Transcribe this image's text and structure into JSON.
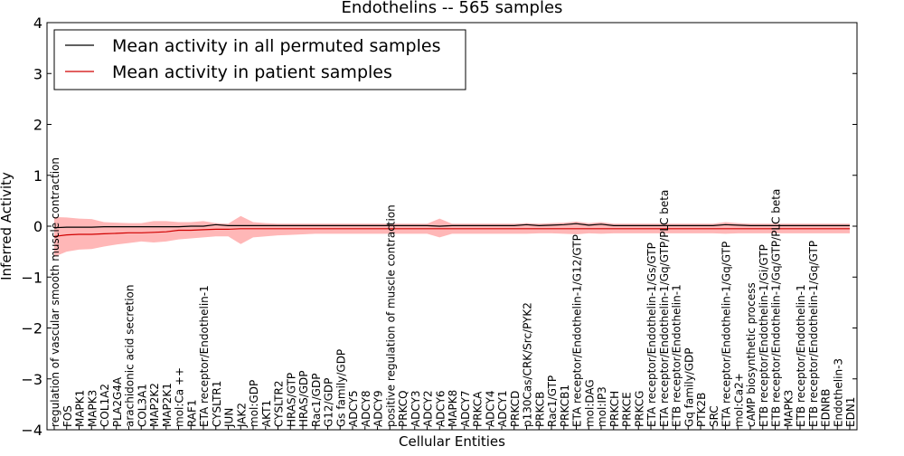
{
  "chart_data": {
    "type": "line",
    "title": "Endothelins -- 565 samples",
    "xlabel": "Cellular Entities",
    "ylabel": "Inferred Activity",
    "ylim": [
      -4,
      4
    ],
    "yticks": [
      "−4",
      "−3",
      "−2",
      "−1",
      "0",
      "1",
      "2",
      "3",
      "4"
    ],
    "grid": false,
    "legend_position": "upper-left",
    "categories": [
      "regulation of vascular smooth muscle contraction",
      "FOS",
      "MAPK1",
      "MAPK3",
      "COL1A2",
      "PLA2G4A",
      "arachidonic acid secretion",
      "COL3A1",
      "MAP2K2",
      "MAP2K1",
      "mol:Ca ++",
      "RAF1",
      "ETA receptor/Endothelin-1",
      "CYSLTR1",
      "JUN",
      "JAK2",
      "mol:GDP",
      "AKT1",
      "CYSLTR2",
      "HRAS/GTP",
      "HRAS/GDP",
      "Rac1/GDP",
      "G12/GDP",
      "Gs family/GDP",
      "ADCY5",
      "ADCY8",
      "ADCY9",
      "positive regulation of muscle contraction",
      "PRKCQ",
      "ADCY3",
      "ADCY2",
      "ADCY6",
      "MAPK8",
      "ADCY7",
      "PRKCA",
      "ADCY4",
      "ADCY1",
      "PRKCD",
      "p130Cas/CRK/Src/PYK2",
      "PRKCB",
      "Rac1/GTP",
      "PRKCB1",
      "ETA receptor/Endothelin-1/G12/GTP",
      "mol:DAG",
      "mol:IP3",
      "PRKCH",
      "PRKCE",
      "PRKCG",
      "ETA receptor/Endothelin-1/Gs/GTP",
      "ETA receptor/Endothelin-1/Gq/GTP/PLC beta",
      "ETB receptor/Endothelin-1",
      "Gq family/GDP",
      "PTK2B",
      "SRC",
      "ETA receptor/Endothelin-1/Gq/GTP",
      "mol:Ca2+",
      "cAMP biosynthetic process",
      "ETB receptor/Endothelin-1/Gi/GTP",
      "ETB receptor/Endothelin-1/Gq/GTP/PLC beta",
      "MAPK3",
      "ETB receptor/Endothelin-1",
      "ETB receptor/Endothelin-1/Gq/GTP",
      "EDNRB",
      "Endothelin-3",
      "EDN1"
    ],
    "series": [
      {
        "name": "Mean activity in all permuted samples",
        "color": "#000000",
        "values": [
          -0.03,
          -0.02,
          -0.02,
          -0.02,
          -0.01,
          -0.01,
          -0.01,
          -0.01,
          -0.01,
          -0.01,
          -0.01,
          0.0,
          0.0,
          0.03,
          0.01,
          0.01,
          0.01,
          0.01,
          0.01,
          0.01,
          0.01,
          0.01,
          0.01,
          0.01,
          0.01,
          0.01,
          0.01,
          0.01,
          0.01,
          0.01,
          0.01,
          0.0,
          0.01,
          0.01,
          0.01,
          0.01,
          0.01,
          0.01,
          0.03,
          0.01,
          0.02,
          0.03,
          0.05,
          0.02,
          0.04,
          0.01,
          0.01,
          0.01,
          0.01,
          0.01,
          0.01,
          0.01,
          0.01,
          0.01,
          0.03,
          0.02,
          0.01,
          0.01,
          0.01,
          0.01,
          0.01,
          0.01,
          0.01,
          0.01,
          0.01
        ]
      },
      {
        "name": "Mean activity in patient samples",
        "color": "#d00000",
        "values": [
          -0.2,
          -0.17,
          -0.16,
          -0.16,
          -0.15,
          -0.14,
          -0.13,
          -0.13,
          -0.12,
          -0.11,
          -0.08,
          -0.08,
          -0.07,
          -0.06,
          -0.06,
          -0.05,
          -0.05,
          -0.05,
          -0.05,
          -0.05,
          -0.05,
          -0.05,
          -0.05,
          -0.05,
          -0.05,
          -0.05,
          -0.05,
          -0.05,
          -0.05,
          -0.05,
          -0.05,
          -0.05,
          -0.05,
          -0.05,
          -0.05,
          -0.05,
          -0.05,
          -0.05,
          -0.05,
          -0.05,
          -0.05,
          -0.05,
          -0.05,
          -0.05,
          -0.05,
          -0.05,
          -0.05,
          -0.05,
          -0.05,
          -0.05,
          -0.05,
          -0.05,
          -0.05,
          -0.05,
          -0.05,
          -0.05,
          -0.05,
          -0.05,
          -0.05,
          -0.05,
          -0.05,
          -0.05,
          -0.05,
          -0.05,
          -0.05
        ],
        "band_upper": [
          0.18,
          0.17,
          0.15,
          0.14,
          0.08,
          0.07,
          0.06,
          0.06,
          0.1,
          0.1,
          0.08,
          0.08,
          0.1,
          0.06,
          0.05,
          0.2,
          0.08,
          0.06,
          0.05,
          0.05,
          0.05,
          0.05,
          0.05,
          0.05,
          0.05,
          0.05,
          0.05,
          0.05,
          0.05,
          0.05,
          0.05,
          0.15,
          0.05,
          0.05,
          0.05,
          0.05,
          0.05,
          0.05,
          0.06,
          0.05,
          0.06,
          0.07,
          0.09,
          0.06,
          0.08,
          0.05,
          0.05,
          0.05,
          0.05,
          0.05,
          0.05,
          0.05,
          0.05,
          0.05,
          0.08,
          0.06,
          0.05,
          0.05,
          0.05,
          0.05,
          0.05,
          0.05,
          0.05,
          0.05,
          0.05
        ],
        "band_lower": [
          -0.6,
          -0.5,
          -0.46,
          -0.45,
          -0.4,
          -0.36,
          -0.33,
          -0.3,
          -0.32,
          -0.3,
          -0.26,
          -0.24,
          -0.22,
          -0.2,
          -0.2,
          -0.35,
          -0.22,
          -0.2,
          -0.18,
          -0.17,
          -0.16,
          -0.15,
          -0.15,
          -0.15,
          -0.15,
          -0.15,
          -0.15,
          -0.15,
          -0.15,
          -0.15,
          -0.15,
          -0.22,
          -0.15,
          -0.15,
          -0.15,
          -0.15,
          -0.15,
          -0.15,
          -0.15,
          -0.14,
          -0.14,
          -0.15,
          -0.16,
          -0.14,
          -0.15,
          -0.14,
          -0.14,
          -0.14,
          -0.14,
          -0.14,
          -0.14,
          -0.14,
          -0.14,
          -0.14,
          -0.15,
          -0.14,
          -0.14,
          -0.14,
          -0.14,
          -0.14,
          -0.14,
          -0.14,
          -0.14,
          -0.14,
          -0.14
        ],
        "band_color": "#ff9999"
      }
    ]
  }
}
